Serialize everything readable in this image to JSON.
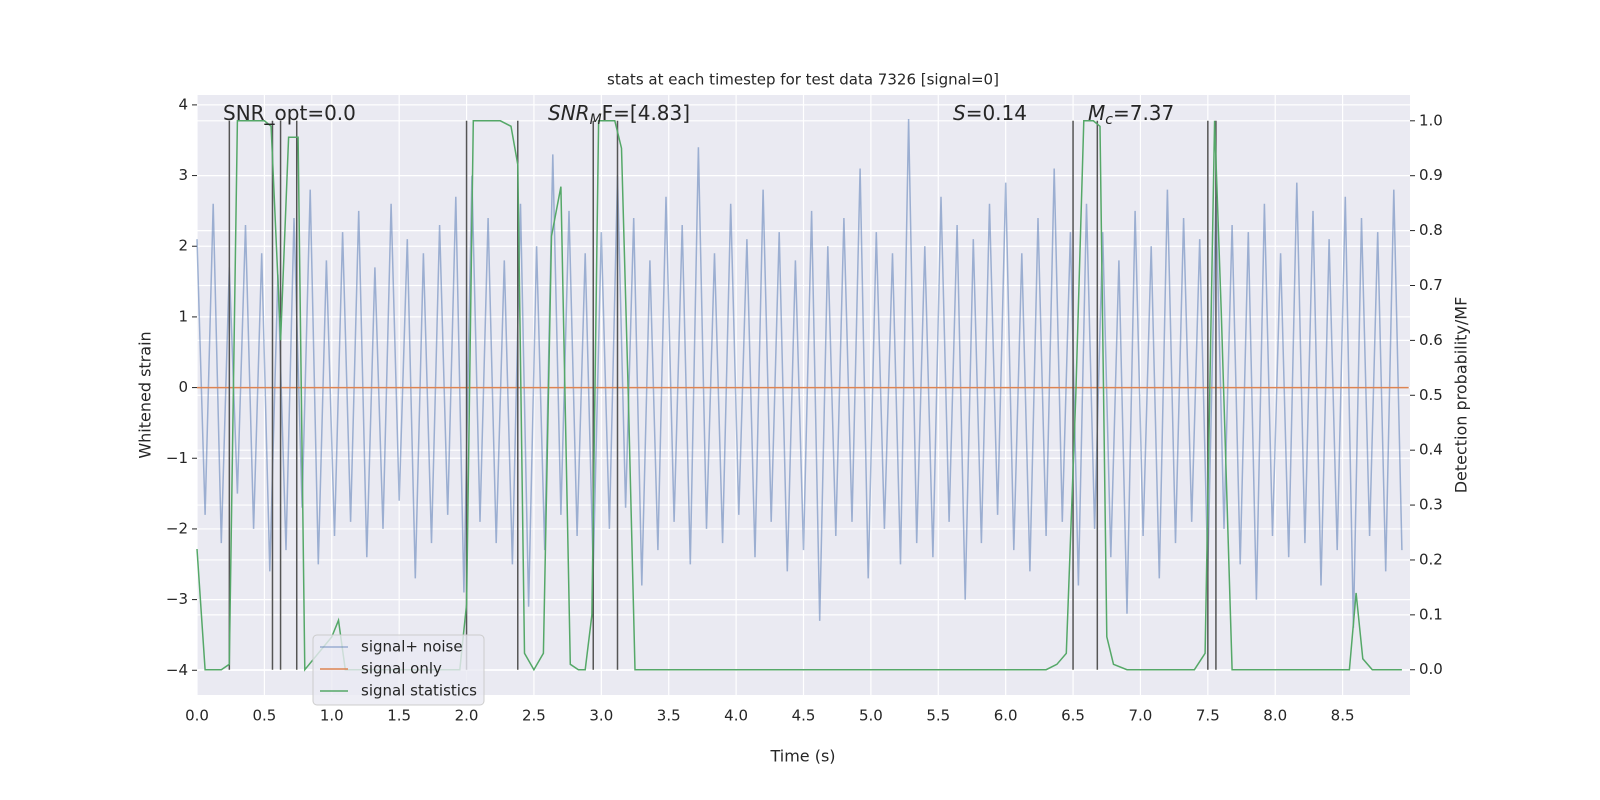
{
  "chart_data": {
    "type": "line",
    "title": "stats at each timestep for test data 7326 [signal=0]",
    "xlabel": "Time (s)",
    "ylabel": "Whitened strain",
    "y2label": "Detection probability/MF",
    "xlim": [
      0,
      9
    ],
    "ylim": [
      -4.35,
      4.14
    ],
    "y2lim": [
      -0.046,
      1.047
    ],
    "xticks": [
      {
        "value": 0,
        "label": "0.0"
      },
      0.5,
      {
        "value": 1,
        "label": "1.0"
      },
      1.5,
      {
        "value": 2,
        "label": "2.0"
      },
      2.5,
      {
        "value": 3,
        "label": "3.0"
      },
      3.5,
      {
        "value": 4,
        "label": "4.0"
      },
      4.5,
      {
        "value": 5,
        "label": "5.0"
      },
      5.5,
      {
        "value": 6,
        "label": "6.0"
      },
      6.5,
      {
        "value": 7,
        "label": "7.0"
      },
      7.5,
      {
        "value": 8,
        "label": "8.0"
      },
      8.5
    ],
    "yticks": [
      {
        "value": -4,
        "label": "−4"
      },
      {
        "value": -3,
        "label": "−3"
      },
      {
        "value": -2,
        "label": "−2"
      },
      {
        "value": -1,
        "label": "−1"
      },
      0,
      1,
      2,
      3,
      4
    ],
    "y2ticks": [
      {
        "value": 0,
        "label": "0.0"
      },
      0.1,
      0.2,
      0.3,
      0.4,
      0.5,
      0.6,
      0.7,
      0.8,
      0.9,
      {
        "value": 1,
        "label": "1.0"
      }
    ],
    "grid": true,
    "legend": "lower left",
    "annotations": [
      {
        "text": "SNR_opt=0.0"
      },
      {
        "text": "SNR",
        "sub": "M",
        "rest": "F=[4.83]"
      },
      {
        "text": "S",
        "rest": "=0.14"
      },
      {
        "text": "M",
        "sub": "c",
        "rest": "=7.37"
      }
    ],
    "vlines": {
      "x": [
        0.24,
        0.56,
        0.62,
        0.74,
        2.0,
        2.38,
        2.94,
        3.12,
        6.5,
        6.68,
        7.5,
        7.56
      ],
      "ymin": 0,
      "ymax": 1,
      "color": "#555555"
    },
    "series": [
      {
        "name": "signal+ noise",
        "color": "#4c72b0",
        "opacity": 0.5,
        "x": [
          0,
          0.06,
          0.12,
          0.18,
          0.24,
          0.3,
          0.36,
          0.42,
          0.48,
          0.54,
          0.6,
          0.66,
          0.72,
          0.78,
          0.84,
          0.9,
          0.96,
          1.02,
          1.08,
          1.14,
          1.2,
          1.26,
          1.32,
          1.38,
          1.44,
          1.5,
          1.56,
          1.62,
          1.68,
          1.74,
          1.8,
          1.86,
          1.92,
          1.98,
          2.04,
          2.1,
          2.16,
          2.22,
          2.28,
          2.34,
          2.4,
          2.46,
          2.52,
          2.58,
          2.64,
          2.7,
          2.76,
          2.82,
          2.88,
          2.94,
          3.0,
          3.06,
          3.12,
          3.18,
          3.24,
          3.3,
          3.36,
          3.42,
          3.48,
          3.54,
          3.6,
          3.66,
          3.72,
          3.78,
          3.84,
          3.9,
          3.96,
          4.02,
          4.08,
          4.14,
          4.2,
          4.26,
          4.32,
          4.38,
          4.44,
          4.5,
          4.56,
          4.62,
          4.68,
          4.74,
          4.8,
          4.86,
          4.92,
          4.98,
          5.04,
          5.1,
          5.16,
          5.22,
          5.28,
          5.34,
          5.4,
          5.46,
          5.52,
          5.58,
          5.64,
          5.7,
          5.76,
          5.82,
          5.88,
          5.94,
          6.0,
          6.06,
          6.12,
          6.18,
          6.24,
          6.3,
          6.36,
          6.42,
          6.48,
          6.54,
          6.6,
          6.66,
          6.72,
          6.78,
          6.84,
          6.9,
          6.96,
          7.02,
          7.08,
          7.14,
          7.2,
          7.26,
          7.32,
          7.38,
          7.44,
          7.5,
          7.56,
          7.62,
          7.68,
          7.74,
          7.8,
          7.86,
          7.92,
          7.98,
          8.04,
          8.1,
          8.16,
          8.22,
          8.28,
          8.34,
          8.4,
          8.46,
          8.52,
          8.58,
          8.64,
          8.7,
          8.76,
          8.82,
          8.88,
          8.94
        ],
        "values": [
          2.1,
          -1.8,
          2.6,
          -2.2,
          1.7,
          -1.5,
          2.3,
          -2.0,
          1.9,
          -2.6,
          1.6,
          -2.3,
          2.4,
          -1.7,
          2.8,
          -2.5,
          1.8,
          -2.1,
          2.2,
          -1.9,
          2.5,
          -2.4,
          1.7,
          -2.0,
          2.6,
          -1.6,
          2.1,
          -2.7,
          1.9,
          -2.2,
          2.3,
          -1.8,
          2.7,
          -2.9,
          3.0,
          -1.9,
          2.4,
          -2.2,
          1.8,
          -2.5,
          2.6,
          -3.1,
          2.0,
          -2.3,
          3.3,
          -1.8,
          2.5,
          -2.1,
          1.9,
          -2.6,
          2.2,
          -2.0,
          3.0,
          -1.7,
          2.4,
          -2.8,
          1.8,
          -2.3,
          2.7,
          -1.9,
          2.3,
          -2.5,
          3.4,
          -2.0,
          1.9,
          -2.2,
          2.6,
          -1.8,
          2.1,
          -2.4,
          2.8,
          -1.9,
          2.2,
          -2.6,
          1.8,
          -2.3,
          2.5,
          -3.3,
          2.0,
          -2.1,
          2.4,
          -1.9,
          3.1,
          -2.7,
          2.2,
          -2.0,
          1.9,
          -2.5,
          3.8,
          -2.2,
          2.0,
          -2.4,
          2.7,
          -1.9,
          2.3,
          -3.0,
          2.1,
          -2.2,
          2.6,
          -1.8,
          2.9,
          -2.3,
          1.9,
          -2.6,
          2.4,
          -2.1,
          3.1,
          -1.9,
          2.2,
          -2.8,
          2.6,
          -2.0,
          2.2,
          -2.4,
          1.8,
          -3.2,
          2.5,
          -2.1,
          2.0,
          -2.7,
          2.8,
          -2.2,
          2.4,
          -1.9,
          2.1,
          -2.6,
          2.7,
          -2.0,
          2.3,
          -2.5,
          2.2,
          -3.0,
          2.6,
          -2.1,
          1.9,
          -2.4,
          2.9,
          -2.2,
          2.5,
          -2.8,
          2.1,
          -2.3,
          2.7,
          -3.4,
          2.4,
          -2.1,
          2.2,
          -2.6,
          2.8,
          -2.3
        ]
      },
      {
        "name": "signal only",
        "color": "#dd8452",
        "opacity": 1,
        "x": [
          0,
          8.99
        ],
        "values": [
          0,
          0
        ]
      },
      {
        "name": "signal statistics",
        "color": "#55a868",
        "opacity": 1,
        "axis": "y2",
        "x": [
          0,
          0.06,
          0.18,
          0.24,
          0.3,
          0.5,
          0.55,
          0.62,
          0.68,
          0.75,
          0.8,
          1.0,
          1.05,
          1.1,
          1.95,
          2.0,
          2.05,
          2.25,
          2.33,
          2.38,
          2.43,
          2.5,
          2.57,
          2.63,
          2.7,
          2.77,
          2.83,
          2.88,
          2.93,
          2.98,
          3.1,
          3.15,
          3.2,
          3.25,
          6.3,
          6.38,
          6.45,
          6.52,
          6.58,
          6.65,
          6.7,
          6.75,
          6.8,
          6.9,
          7.4,
          7.48,
          7.55,
          7.6,
          7.68,
          8.55,
          8.6,
          8.65,
          8.72,
          8.94
        ],
        "values": [
          0.22,
          0,
          0,
          0.01,
          1.0,
          1.0,
          0.99,
          0.6,
          0.97,
          0.97,
          0,
          0.06,
          0.09,
          0,
          0,
          0.12,
          1.0,
          1.0,
          0.99,
          0.92,
          0.03,
          0,
          0.03,
          0.79,
          0.88,
          0.01,
          0,
          0,
          0.1,
          1.0,
          1.0,
          0.95,
          0.5,
          0,
          0,
          0.01,
          0.03,
          0.5,
          1.0,
          1.0,
          0.99,
          0.06,
          0.01,
          0,
          0,
          0.03,
          1.0,
          0.65,
          0,
          0,
          0.14,
          0.02,
          0,
          0
        ]
      }
    ]
  }
}
